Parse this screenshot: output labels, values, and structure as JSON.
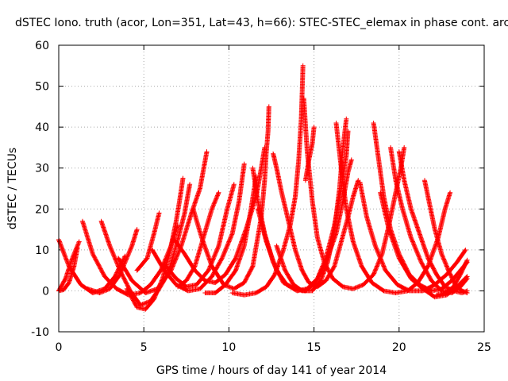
{
  "chart_data": {
    "type": "scatter",
    "title": "dSTEC Iono. truth (acor, Lon=351, Lat=43, h=66): STEC-STEC_elemax in phase cont. arc",
    "xlabel": "GPS time / hours of day 141 of year 2014",
    "ylabel": "dSTEC  / TECUs",
    "xlim": [
      0,
      25
    ],
    "ylim": [
      -10,
      60
    ],
    "x_ticks": [
      "0",
      "5",
      "10",
      "15",
      "20",
      "25"
    ],
    "y_ticks": [
      "-10",
      "0",
      "10",
      "20",
      "30",
      "40",
      "50",
      "60"
    ],
    "grid": true,
    "marker": "+",
    "color": "#ff0000",
    "series": [
      {
        "arc": [
          [
            0.0,
            12.5
          ],
          [
            0.6,
            6
          ],
          [
            1.3,
            1.5
          ],
          [
            2.0,
            -0.5
          ],
          [
            2.7,
            0.5
          ],
          [
            3.3,
            3.5
          ],
          [
            3.9,
            8.5
          ]
        ]
      },
      {
        "arc": [
          [
            0.0,
            0.0
          ],
          [
            0.3,
            0.3
          ],
          [
            0.6,
            2
          ],
          [
            0.9,
            6
          ],
          [
            1.1,
            10.5
          ]
        ]
      },
      {
        "arc": [
          [
            0.0,
            0.0
          ],
          [
            0.4,
            3
          ],
          [
            0.8,
            8
          ],
          [
            1.2,
            12
          ]
        ]
      },
      {
        "arc": [
          [
            1.4,
            17
          ],
          [
            2.0,
            9
          ],
          [
            2.7,
            3.5
          ],
          [
            3.4,
            0.5
          ],
          [
            4.1,
            -1
          ],
          [
            4.8,
            -0.5
          ],
          [
            5.4,
            1.5
          ],
          [
            6.0,
            5
          ],
          [
            6.6,
            11
          ],
          [
            7.0,
            16
          ]
        ]
      },
      {
        "arc": [
          [
            1.7,
            0.5
          ],
          [
            2.4,
            -0.5
          ],
          [
            3.0,
            0.5
          ],
          [
            3.6,
            4
          ],
          [
            4.3,
            11
          ],
          [
            4.6,
            15
          ]
        ]
      },
      {
        "arc": [
          [
            2.5,
            17
          ],
          [
            3.0,
            11
          ],
          [
            3.6,
            5
          ],
          [
            4.2,
            0
          ],
          [
            4.8,
            -3.5
          ],
          [
            5.4,
            -2.5
          ],
          [
            5.9,
            0.5
          ],
          [
            6.4,
            4
          ],
          [
            6.9,
            11
          ],
          [
            7.4,
            19
          ],
          [
            7.7,
            26
          ]
        ]
      },
      {
        "arc": [
          [
            3.5,
            8
          ],
          [
            4.3,
            2.5
          ],
          [
            5.1,
            -0.5
          ],
          [
            5.8,
            0.5
          ],
          [
            6.6,
            5
          ],
          [
            7.2,
            11
          ],
          [
            7.8,
            19
          ],
          [
            8.3,
            25
          ],
          [
            8.7,
            34
          ]
        ]
      },
      {
        "arc": [
          [
            4.0,
            0.5
          ],
          [
            4.6,
            -4
          ],
          [
            5.1,
            -4.5
          ],
          [
            5.6,
            -2
          ],
          [
            6.1,
            3
          ],
          [
            6.5,
            9
          ],
          [
            6.9,
            17
          ],
          [
            7.1,
            22
          ],
          [
            7.3,
            27.5
          ]
        ]
      },
      {
        "arc": [
          [
            4.6,
            5
          ],
          [
            5.2,
            8
          ],
          [
            5.6,
            14
          ],
          [
            5.9,
            19
          ]
        ]
      },
      {
        "arc": [
          [
            5.5,
            10
          ],
          [
            6.2,
            5
          ],
          [
            6.9,
            1.5
          ],
          [
            7.6,
            0
          ],
          [
            8.3,
            0.5
          ],
          [
            9.0,
            3.5
          ],
          [
            9.6,
            8
          ],
          [
            10.2,
            14
          ],
          [
            10.6,
            22
          ],
          [
            10.9,
            31
          ]
        ]
      },
      {
        "arc": [
          [
            6.2,
            6.5
          ],
          [
            6.9,
            3
          ],
          [
            7.5,
            1
          ],
          [
            8.1,
            1.5
          ],
          [
            8.8,
            5
          ],
          [
            9.4,
            11
          ],
          [
            9.9,
            20
          ],
          [
            10.3,
            26
          ]
        ]
      },
      {
        "arc": [
          [
            6.8,
            12.5
          ],
          [
            7.4,
            9
          ],
          [
            8.0,
            5
          ],
          [
            8.6,
            2.5
          ],
          [
            9.2,
            2
          ],
          [
            9.8,
            4
          ],
          [
            10.4,
            8
          ],
          [
            11.0,
            15
          ],
          [
            11.6,
            23
          ],
          [
            11.9,
            30
          ],
          [
            12.1,
            35
          ]
        ]
      },
      {
        "arc": [
          [
            7.0,
            1
          ],
          [
            7.5,
            2.5
          ],
          [
            8.0,
            6
          ],
          [
            8.5,
            13
          ],
          [
            9.0,
            20
          ],
          [
            9.4,
            24
          ]
        ]
      },
      {
        "arc": [
          [
            7.9,
            20
          ],
          [
            8.4,
            13
          ],
          [
            9.0,
            6
          ],
          [
            9.7,
            1.5
          ],
          [
            10.3,
            0.5
          ],
          [
            10.9,
            2
          ],
          [
            11.4,
            6
          ],
          [
            11.9,
            18
          ],
          [
            12.1,
            27
          ],
          [
            12.2,
            34
          ],
          [
            12.3,
            39
          ],
          [
            12.35,
            45
          ]
        ]
      },
      {
        "arc": [
          [
            8.6,
            -0.5
          ],
          [
            9.2,
            -0.5
          ],
          [
            9.8,
            1.5
          ],
          [
            10.4,
            5
          ],
          [
            10.9,
            11
          ],
          [
            11.3,
            20
          ],
          [
            11.6,
            28
          ]
        ]
      },
      {
        "arc": [
          [
            10.2,
            -0.5
          ],
          [
            10.9,
            -1
          ],
          [
            11.6,
            -0.5
          ],
          [
            12.2,
            1
          ],
          [
            12.7,
            4
          ],
          [
            13.2,
            10
          ],
          [
            13.6,
            16
          ],
          [
            13.9,
            23
          ],
          [
            14.1,
            32
          ],
          [
            14.25,
            42
          ],
          [
            14.3,
            48
          ],
          [
            14.35,
            55
          ]
        ]
      },
      {
        "arc": [
          [
            11.4,
            30
          ],
          [
            11.7,
            22
          ],
          [
            12.1,
            14
          ],
          [
            12.6,
            7
          ],
          [
            13.2,
            2
          ],
          [
            13.9,
            0.5
          ],
          [
            14.5,
            0
          ],
          [
            15.1,
            2
          ],
          [
            15.7,
            7
          ],
          [
            16.3,
            14
          ],
          [
            16.7,
            22
          ],
          [
            17.0,
            29
          ],
          [
            17.2,
            32
          ]
        ]
      },
      {
        "arc": [
          [
            11.7,
            20
          ],
          [
            12.2,
            12
          ],
          [
            12.8,
            5
          ],
          [
            13.4,
            1.5
          ],
          [
            14.0,
            0
          ],
          [
            14.6,
            0.5
          ],
          [
            15.2,
            3
          ],
          [
            15.7,
            8
          ],
          [
            16.2,
            16
          ],
          [
            16.6,
            25
          ],
          [
            16.9,
            33
          ],
          [
            17.0,
            39
          ]
        ]
      },
      {
        "arc": [
          [
            12.6,
            33.5
          ],
          [
            12.8,
            30
          ],
          [
            13.1,
            24
          ],
          [
            13.5,
            17
          ],
          [
            13.9,
            10
          ],
          [
            14.3,
            5
          ],
          [
            14.7,
            2
          ],
          [
            15.2,
            1
          ],
          [
            15.7,
            2.5
          ],
          [
            16.2,
            6
          ],
          [
            16.6,
            12
          ],
          [
            17.0,
            18
          ],
          [
            17.3,
            23
          ],
          [
            17.6,
            27
          ]
        ]
      },
      {
        "arc": [
          [
            12.8,
            11
          ],
          [
            13.3,
            5
          ],
          [
            13.8,
            1.5
          ],
          [
            14.3,
            0
          ],
          [
            14.9,
            0
          ],
          [
            15.4,
            2.5
          ],
          [
            15.8,
            7
          ],
          [
            16.2,
            15
          ],
          [
            16.5,
            25
          ],
          [
            16.7,
            35
          ],
          [
            16.9,
            42
          ]
        ]
      },
      {
        "arc": [
          [
            14.4,
            47
          ],
          [
            14.6,
            34
          ],
          [
            14.9,
            22
          ],
          [
            15.2,
            13
          ],
          [
            15.6,
            7
          ],
          [
            16.1,
            3
          ],
          [
            16.7,
            1
          ],
          [
            17.3,
            0.5
          ],
          [
            17.9,
            1.5
          ],
          [
            18.5,
            4
          ],
          [
            19.0,
            9
          ],
          [
            19.4,
            16
          ],
          [
            19.8,
            24
          ],
          [
            20.1,
            30
          ],
          [
            20.3,
            35
          ]
        ]
      },
      {
        "arc": [
          [
            14.5,
            27
          ],
          [
            14.7,
            32
          ],
          [
            14.9,
            36
          ],
          [
            15.0,
            40
          ]
        ]
      },
      {
        "arc": [
          [
            16.3,
            41
          ],
          [
            16.6,
            30
          ],
          [
            16.9,
            20
          ],
          [
            17.3,
            12
          ],
          [
            17.8,
            6
          ],
          [
            18.4,
            2
          ],
          [
            19.1,
            0
          ],
          [
            19.8,
            -0.5
          ],
          [
            20.5,
            0
          ],
          [
            21.1,
            2
          ],
          [
            21.7,
            6
          ],
          [
            22.3,
            13
          ],
          [
            22.7,
            20
          ],
          [
            23.0,
            24
          ]
        ]
      },
      {
        "arc": [
          [
            17.7,
            26.5
          ],
          [
            18.1,
            18
          ],
          [
            18.6,
            11
          ],
          [
            19.2,
            5
          ],
          [
            19.9,
            1.5
          ],
          [
            20.6,
            0
          ],
          [
            21.4,
            0
          ],
          [
            22.1,
            1.5
          ],
          [
            22.8,
            4
          ],
          [
            23.4,
            7
          ],
          [
            23.9,
            10
          ]
        ]
      },
      {
        "arc": [
          [
            18.5,
            41
          ],
          [
            18.8,
            32
          ],
          [
            19.1,
            23
          ],
          [
            19.5,
            15
          ],
          [
            20.0,
            9
          ],
          [
            20.6,
            4
          ],
          [
            21.2,
            1.5
          ],
          [
            21.9,
            0
          ],
          [
            22.5,
            0.5
          ],
          [
            23.1,
            2.5
          ],
          [
            23.7,
            5.5
          ],
          [
            24.0,
            7
          ]
        ]
      },
      {
        "arc": [
          [
            18.9,
            24
          ],
          [
            19.4,
            15
          ],
          [
            20.0,
            8
          ],
          [
            20.7,
            3
          ],
          [
            21.4,
            0.5
          ],
          [
            22.1,
            -1.5
          ],
          [
            22.8,
            -1
          ],
          [
            23.4,
            1
          ],
          [
            24.0,
            3.5
          ]
        ]
      },
      {
        "arc": [
          [
            19.5,
            35
          ],
          [
            19.8,
            27
          ],
          [
            20.2,
            20
          ],
          [
            20.7,
            13
          ],
          [
            21.3,
            7
          ],
          [
            21.9,
            2.5
          ],
          [
            22.5,
            0
          ],
          [
            23.1,
            -0.5
          ],
          [
            23.6,
            1
          ],
          [
            24.0,
            3
          ]
        ]
      },
      {
        "arc": [
          [
            20.0,
            34
          ],
          [
            20.3,
            27
          ],
          [
            20.7,
            20
          ],
          [
            21.2,
            14
          ],
          [
            21.7,
            8
          ],
          [
            22.2,
            4
          ],
          [
            22.7,
            1
          ],
          [
            23.2,
            0
          ],
          [
            23.7,
            -0.5
          ],
          [
            24.0,
            0
          ]
        ]
      },
      {
        "arc": [
          [
            21.5,
            27
          ],
          [
            21.8,
            21
          ],
          [
            22.1,
            15
          ],
          [
            22.5,
            9
          ],
          [
            22.9,
            5
          ],
          [
            23.3,
            1.5
          ],
          [
            23.7,
            0
          ],
          [
            24.0,
            -0.5
          ]
        ]
      },
      {
        "arc": [
          [
            22.2,
            -1
          ],
          [
            22.7,
            -0.5
          ],
          [
            23.2,
            1
          ],
          [
            23.6,
            4
          ],
          [
            24.0,
            7.5
          ]
        ]
      }
    ]
  }
}
